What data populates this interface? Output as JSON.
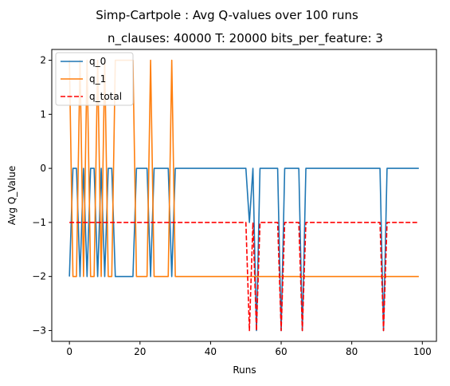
{
  "chart_data": {
    "type": "line",
    "title": "Simp-Cartpole : Avg Q-values over 100 runs",
    "subtitle": "n_clauses: 40000 T: 20000 bits_per_feature: 3",
    "xlabel": "Runs",
    "ylabel": "Avg Q_Value",
    "xlim": [
      -5,
      104
    ],
    "ylim": [
      -3.2,
      2.2
    ],
    "xticks": [
      0,
      20,
      40,
      60,
      80,
      100
    ],
    "yticks": [
      -3,
      -2,
      -1,
      0,
      1,
      2
    ],
    "grid": false,
    "legend_position": "top-left",
    "series": [
      {
        "name": "q_0",
        "color": "#1f77b4",
        "dash": "solid",
        "x": [
          0,
          1,
          2,
          3,
          4,
          5,
          6,
          7,
          8,
          9,
          10,
          11,
          12,
          13,
          14,
          15,
          16,
          17,
          18,
          19,
          20,
          21,
          22,
          23,
          24,
          25,
          26,
          27,
          28,
          29,
          30,
          31,
          32,
          33,
          34,
          35,
          36,
          37,
          38,
          39,
          40,
          41,
          42,
          43,
          44,
          45,
          46,
          47,
          48,
          49,
          50,
          51,
          52,
          53,
          54,
          55,
          56,
          57,
          58,
          59,
          60,
          61,
          62,
          63,
          64,
          65,
          66,
          67,
          68,
          69,
          70,
          71,
          72,
          73,
          74,
          75,
          76,
          77,
          78,
          79,
          80,
          81,
          82,
          83,
          84,
          85,
          86,
          87,
          88,
          89,
          90,
          91,
          92,
          93,
          94,
          95,
          96,
          97,
          98,
          99
        ],
        "values": [
          -2,
          0,
          0,
          -2,
          0,
          -2,
          0,
          0,
          -2,
          0,
          -2,
          0,
          0,
          -2,
          -2,
          -2,
          -2,
          -2,
          -2,
          0,
          0,
          0,
          0,
          -2,
          0,
          0,
          0,
          0,
          0,
          -2,
          0,
          0,
          0,
          0,
          0,
          0,
          0,
          0,
          0,
          0,
          0,
          0,
          0,
          0,
          0,
          0,
          0,
          0,
          0,
          0,
          0,
          -1,
          0,
          -3,
          0,
          0,
          0,
          0,
          0,
          0,
          -3,
          0,
          0,
          0,
          0,
          0,
          -3,
          0,
          0,
          0,
          0,
          0,
          0,
          0,
          0,
          0,
          0,
          0,
          0,
          0,
          0,
          0,
          0,
          0,
          0,
          0,
          0,
          0,
          0,
          -3,
          0,
          0,
          0,
          0,
          0,
          0,
          0,
          0,
          0,
          0
        ]
      },
      {
        "name": "q_1",
        "color": "#ff7f0e",
        "dash": "solid",
        "x": [
          0,
          1,
          2,
          3,
          4,
          5,
          6,
          7,
          8,
          9,
          10,
          11,
          12,
          13,
          14,
          15,
          16,
          17,
          18,
          19,
          20,
          21,
          22,
          23,
          24,
          25,
          26,
          27,
          28,
          29,
          30,
          31,
          32,
          33,
          34,
          35,
          36,
          37,
          38,
          39,
          40,
          41,
          42,
          43,
          44,
          45,
          46,
          47,
          48,
          49,
          50,
          51,
          52,
          53,
          54,
          55,
          56,
          57,
          58,
          59,
          60,
          61,
          62,
          63,
          64,
          65,
          66,
          67,
          68,
          69,
          70,
          71,
          72,
          73,
          74,
          75,
          76,
          77,
          78,
          79,
          80,
          81,
          82,
          83,
          84,
          85,
          86,
          87,
          88,
          89,
          90,
          91,
          92,
          93,
          94,
          95,
          96,
          97,
          98,
          99
        ],
        "values": [
          2,
          -2,
          -2,
          2,
          -2,
          2,
          -2,
          -2,
          2,
          -2,
          2,
          -2,
          -2,
          2,
          2,
          2,
          2,
          2,
          2,
          -2,
          -2,
          -2,
          -2,
          2,
          -2,
          -2,
          -2,
          -2,
          -2,
          2,
          -2,
          -2,
          -2,
          -2,
          -2,
          -2,
          -2,
          -2,
          -2,
          -2,
          -2,
          -2,
          -2,
          -2,
          -2,
          -2,
          -2,
          -2,
          -2,
          -2,
          -2,
          -2,
          -2,
          -2,
          -2,
          -2,
          -2,
          -2,
          -2,
          -2,
          -2,
          -2,
          -2,
          -2,
          -2,
          -2,
          -2,
          -2,
          -2,
          -2,
          -2,
          -2,
          -2,
          -2,
          -2,
          -2,
          -2,
          -2,
          -2,
          -2,
          -2,
          -2,
          -2,
          -2,
          -2,
          -2,
          -2,
          -2,
          -2,
          -2,
          -2,
          -2,
          -2,
          -2,
          -2,
          -2,
          -2,
          -2,
          -2,
          -2
        ]
      },
      {
        "name": "q_total",
        "color": "#ff0000",
        "dash": "dashed",
        "x": [
          0,
          1,
          2,
          3,
          4,
          5,
          6,
          7,
          8,
          9,
          10,
          11,
          12,
          13,
          14,
          15,
          16,
          17,
          18,
          19,
          20,
          21,
          22,
          23,
          24,
          25,
          26,
          27,
          28,
          29,
          30,
          31,
          32,
          33,
          34,
          35,
          36,
          37,
          38,
          39,
          40,
          41,
          42,
          43,
          44,
          45,
          46,
          47,
          48,
          49,
          50,
          51,
          52,
          53,
          54,
          55,
          56,
          57,
          58,
          59,
          60,
          61,
          62,
          63,
          64,
          65,
          66,
          67,
          68,
          69,
          70,
          71,
          72,
          73,
          74,
          75,
          76,
          77,
          78,
          79,
          80,
          81,
          82,
          83,
          84,
          85,
          86,
          87,
          88,
          89,
          90,
          91,
          92,
          93,
          94,
          95,
          96,
          97,
          98,
          99
        ],
        "values": [
          -1,
          -1,
          -1,
          -1,
          -1,
          -1,
          -1,
          -1,
          -1,
          -1,
          -1,
          -1,
          -1,
          -1,
          -1,
          -1,
          -1,
          -1,
          -1,
          -1,
          -1,
          -1,
          -1,
          -1,
          -1,
          -1,
          -1,
          -1,
          -1,
          -1,
          -1,
          -1,
          -1,
          -1,
          -1,
          -1,
          -1,
          -1,
          -1,
          -1,
          -1,
          -1,
          -1,
          -1,
          -1,
          -1,
          -1,
          -1,
          -1,
          -1,
          -1,
          -3,
          -1,
          -3,
          -1,
          -1,
          -1,
          -1,
          -1,
          -1,
          -3,
          -1,
          -1,
          -1,
          -1,
          -1,
          -3,
          -1,
          -1,
          -1,
          -1,
          -1,
          -1,
          -1,
          -1,
          -1,
          -1,
          -1,
          -1,
          -1,
          -1,
          -1,
          -1,
          -1,
          -1,
          -1,
          -1,
          -1,
          -1,
          -3,
          -1,
          -1,
          -1,
          -1,
          -1,
          -1,
          -1,
          -1,
          -1,
          -1
        ]
      }
    ]
  }
}
